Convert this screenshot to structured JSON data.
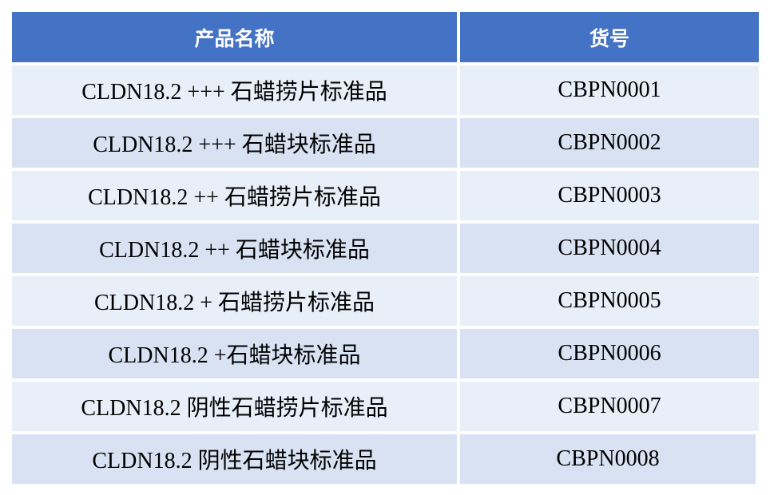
{
  "colors": {
    "header": "#4472C4",
    "row_light": "#E9EFF9",
    "row_dark": "#D9E2F3"
  },
  "table": {
    "headers": [
      "产品名称",
      "货号"
    ],
    "rows": [
      {
        "name": "CLDN18.2 +++ 石蜡捞片标准品",
        "code": "CBPN0001"
      },
      {
        "name": "CLDN18.2 +++ 石蜡块标准品",
        "code": "CBPN0002"
      },
      {
        "name": "CLDN18.2 ++ 石蜡捞片标准品",
        "code": "CBPN0003"
      },
      {
        "name": "CLDN18.2 ++ 石蜡块标准品",
        "code": "CBPN0004"
      },
      {
        "name": "CLDN18.2 + 石蜡捞片标准品",
        "code": "CBPN0005"
      },
      {
        "name": "CLDN18.2 +石蜡块标准品",
        "code": "CBPN0006"
      },
      {
        "name": "CLDN18.2 阴性石蜡捞片标准品",
        "code": "CBPN0007"
      },
      {
        "name": "CLDN18.2 阴性石蜡块标准品",
        "code": "CBPN0008"
      }
    ]
  }
}
